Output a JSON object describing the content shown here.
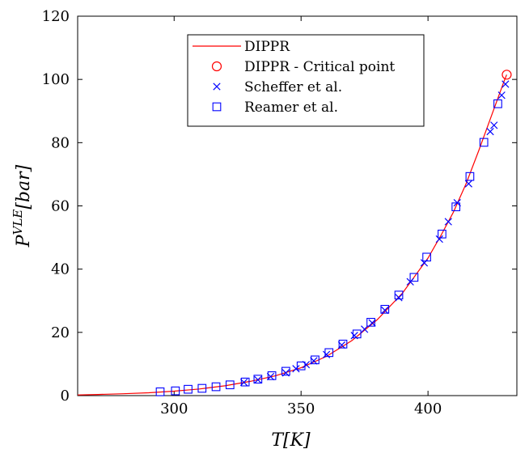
{
  "chart_data": {
    "type": "line",
    "xlabel": "T[K]",
    "ylabel": "P^VLE[bar]",
    "xlim": [
      262,
      435
    ],
    "ylim": [
      0,
      120
    ],
    "xticks": [
      300,
      350,
      400
    ],
    "yticks": [
      0,
      20,
      40,
      60,
      80,
      100,
      120
    ],
    "xtick_labels": [
      "300",
      "350",
      "400"
    ],
    "ytick_labels": [
      "0",
      "20",
      "40",
      "60",
      "80",
      "100",
      "120"
    ],
    "grid": false,
    "legend_position": "top-center",
    "series": [
      {
        "name": "DIPPR",
        "kind": "line",
        "color": "#ff0000",
        "x": [
          262,
          270,
          280,
          290,
          300,
          310,
          320,
          330,
          340,
          350,
          360,
          370,
          380,
          390,
          400,
          405,
          410,
          415,
          420,
          425,
          430,
          431
        ],
        "y": [
          0.2,
          0.35,
          0.6,
          0.9,
          1.4,
          2.1,
          3.1,
          4.5,
          6.3,
          8.8,
          12.4,
          17.4,
          24.0,
          32.5,
          43.5,
          50.5,
          58.0,
          67.0,
          77.5,
          88.5,
          99.5,
          101.5
        ]
      },
      {
        "name": "DIPPR - Critical point",
        "kind": "circle",
        "color": "#ff0000",
        "x": [
          431
        ],
        "y": [
          101.5
        ]
      },
      {
        "name": "Scheffer et al.",
        "kind": "x",
        "color": "#0000ff",
        "x": [
          327.5,
          333,
          338,
          344,
          348,
          352,
          355,
          360,
          366,
          371,
          375,
          378,
          383,
          388.5,
          393,
          398.5,
          404.5,
          408,
          411.5,
          416,
          424.5,
          426,
          429,
          430.5
        ],
        "y": [
          4.2,
          5.0,
          6.0,
          7.2,
          8.5,
          9.8,
          11.0,
          13.0,
          16.0,
          19.0,
          21.0,
          23.0,
          27.0,
          31.0,
          36.0,
          42.0,
          49.5,
          55.0,
          61.0,
          67.0,
          83.5,
          85.5,
          95.0,
          98.5
        ]
      },
      {
        "name": "Reamer et al.",
        "kind": "square",
        "color": "#0000ff",
        "x": [
          294.5,
          300.5,
          305.5,
          311,
          316.5,
          322,
          328,
          333,
          338.5,
          344,
          350,
          355.5,
          361,
          366.5,
          372,
          377.5,
          383,
          388.5,
          394.5,
          399.5,
          405.5,
          411,
          416.5,
          422,
          427.5
        ],
        "y": [
          1.2,
          1.5,
          2.0,
          2.3,
          2.8,
          3.4,
          4.3,
          5.2,
          6.3,
          7.7,
          9.4,
          11.3,
          13.6,
          16.3,
          19.5,
          23.2,
          27.3,
          31.8,
          37.4,
          43.8,
          51.1,
          59.7,
          69.3,
          80.1,
          92.3
        ]
      }
    ]
  }
}
